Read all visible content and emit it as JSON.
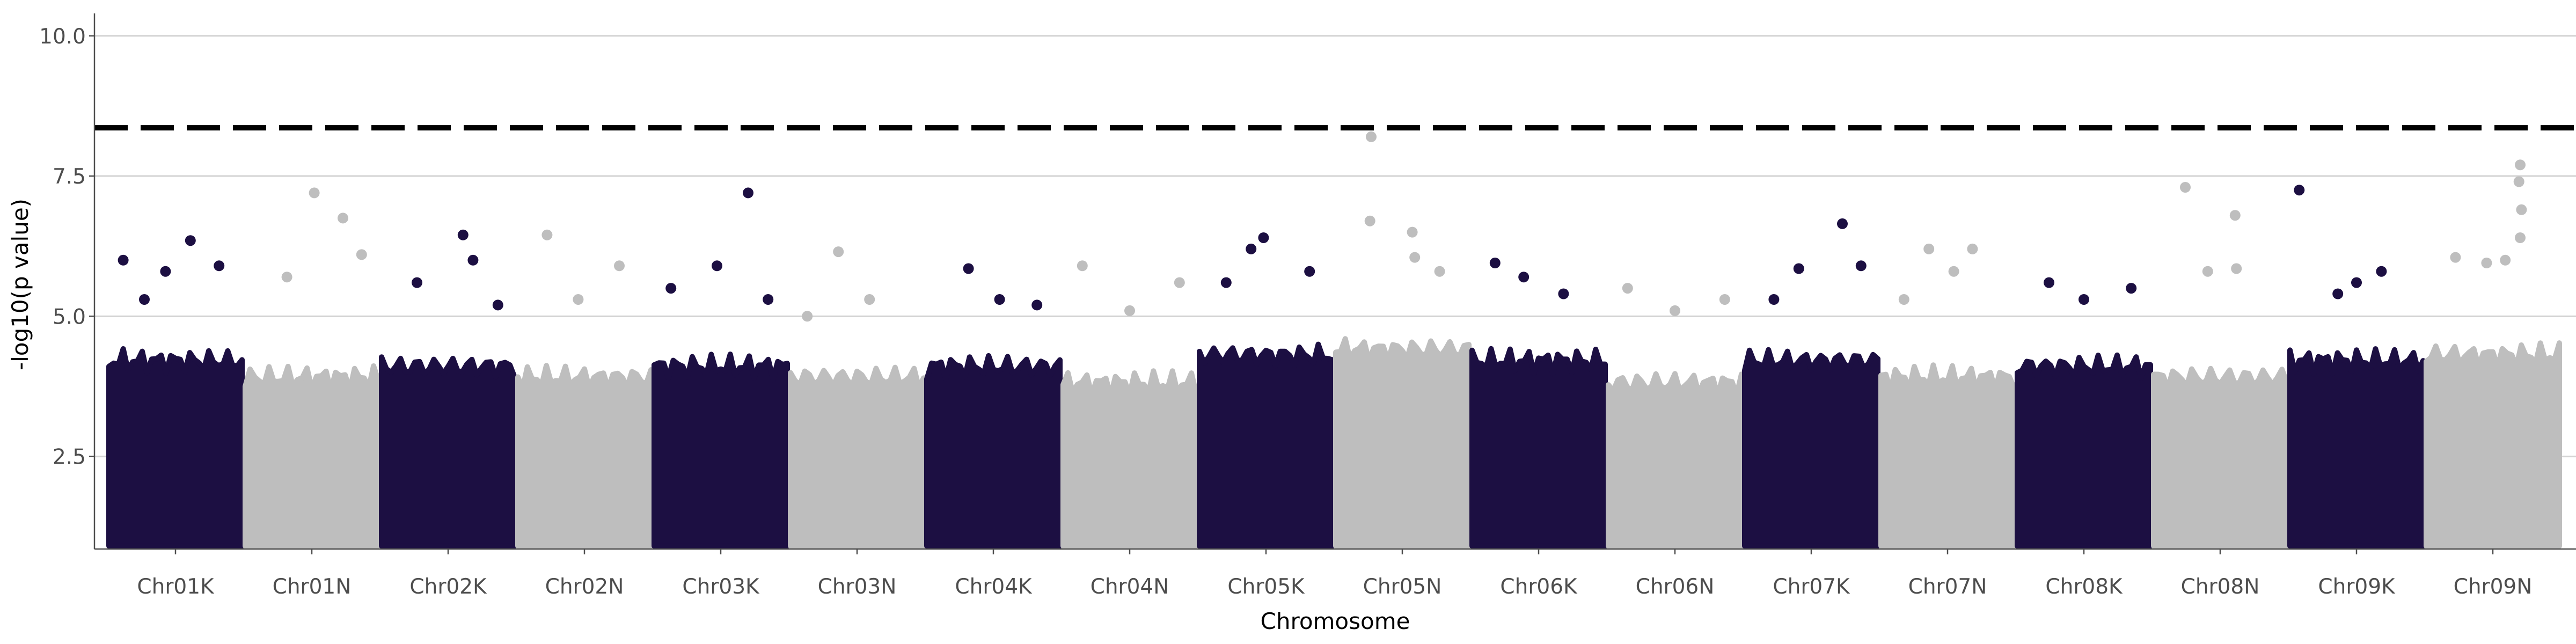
{
  "chart_data": {
    "type": "scatter",
    "subtype": "manhattan",
    "title": "",
    "xlabel": "Chromosome",
    "ylabel": "-log10(p value)",
    "ylim": [
      0.85,
      10.4
    ],
    "yticks": [
      2.5,
      5.0,
      7.5,
      10.0
    ],
    "ytick_labels": [
      "2.5",
      "5.0",
      "7.5",
      "10.0"
    ],
    "grid": "horizontal major gridlines only",
    "legend": "none",
    "significance_threshold": 8.36,
    "threshold_style": "black dashed line",
    "colors": {
      "K": "#1c0f42",
      "N": "#bebebe",
      "threshold": "#000000",
      "grid": "#d3d3d3"
    },
    "categories": [
      "Chr01K",
      "Chr01N",
      "Chr02K",
      "Chr02N",
      "Chr03K",
      "Chr03N",
      "Chr04K",
      "Chr04N",
      "Chr05K",
      "Chr05N",
      "Chr06K",
      "Chr06N",
      "Chr07K",
      "Chr07N",
      "Chr08K",
      "Chr08N",
      "Chr09K",
      "Chr09N"
    ],
    "dense_floor": 1.0,
    "dense_top": [
      4.2,
      3.9,
      4.1,
      3.9,
      4.1,
      3.9,
      4.1,
      3.8,
      4.3,
      4.4,
      4.2,
      3.8,
      4.2,
      3.9,
      4.1,
      3.9,
      4.2,
      4.3
    ],
    "notable_points": [
      {
        "chr": "Chr01K",
        "pos": 0.62,
        "y": 6.35
      },
      {
        "chr": "Chr01K",
        "pos": 0.08,
        "y": 6.0
      },
      {
        "chr": "Chr01K",
        "pos": 0.42,
        "y": 5.8
      },
      {
        "chr": "Chr01K",
        "pos": 0.85,
        "y": 5.9
      },
      {
        "chr": "Chr01K",
        "pos": 0.25,
        "y": 5.3
      },
      {
        "chr": "Chr01N",
        "pos": 0.52,
        "y": 7.2
      },
      {
        "chr": "Chr01N",
        "pos": 0.75,
        "y": 6.75
      },
      {
        "chr": "Chr01N",
        "pos": 0.9,
        "y": 6.1
      },
      {
        "chr": "Chr01N",
        "pos": 0.3,
        "y": 5.7
      },
      {
        "chr": "Chr02K",
        "pos": 0.62,
        "y": 6.45
      },
      {
        "chr": "Chr02K",
        "pos": 0.7,
        "y": 6.0
      },
      {
        "chr": "Chr02K",
        "pos": 0.25,
        "y": 5.6
      },
      {
        "chr": "Chr02K",
        "pos": 0.9,
        "y": 5.2
      },
      {
        "chr": "Chr02N",
        "pos": 0.2,
        "y": 6.45
      },
      {
        "chr": "Chr02N",
        "pos": 0.78,
        "y": 5.9
      },
      {
        "chr": "Chr02N",
        "pos": 0.45,
        "y": 5.3
      },
      {
        "chr": "Chr03K",
        "pos": 0.72,
        "y": 7.2
      },
      {
        "chr": "Chr03K",
        "pos": 0.47,
        "y": 5.9
      },
      {
        "chr": "Chr03K",
        "pos": 0.1,
        "y": 5.5
      },
      {
        "chr": "Chr03K",
        "pos": 0.88,
        "y": 5.3
      },
      {
        "chr": "Chr03N",
        "pos": 0.35,
        "y": 6.15
      },
      {
        "chr": "Chr03N",
        "pos": 0.6,
        "y": 5.3
      },
      {
        "chr": "Chr03N",
        "pos": 0.1,
        "y": 5.0
      },
      {
        "chr": "Chr04K",
        "pos": 0.3,
        "y": 5.85
      },
      {
        "chr": "Chr04K",
        "pos": 0.55,
        "y": 5.3
      },
      {
        "chr": "Chr04K",
        "pos": 0.85,
        "y": 5.2
      },
      {
        "chr": "Chr04N",
        "pos": 0.12,
        "y": 5.9
      },
      {
        "chr": "Chr04N",
        "pos": 0.9,
        "y": 5.6
      },
      {
        "chr": "Chr04N",
        "pos": 0.5,
        "y": 5.1
      },
      {
        "chr": "Chr05K",
        "pos": 0.48,
        "y": 6.4
      },
      {
        "chr": "Chr05K",
        "pos": 0.38,
        "y": 6.2
      },
      {
        "chr": "Chr05K",
        "pos": 0.18,
        "y": 5.6
      },
      {
        "chr": "Chr05K",
        "pos": 0.85,
        "y": 5.8
      },
      {
        "chr": "Chr05N",
        "pos": 0.25,
        "y": 8.2
      },
      {
        "chr": "Chr05N",
        "pos": 0.24,
        "y": 6.7
      },
      {
        "chr": "Chr05N",
        "pos": 0.58,
        "y": 6.5
      },
      {
        "chr": "Chr05N",
        "pos": 0.6,
        "y": 6.05
      },
      {
        "chr": "Chr05N",
        "pos": 0.8,
        "y": 5.8
      },
      {
        "chr": "Chr06K",
        "pos": 0.15,
        "y": 5.95
      },
      {
        "chr": "Chr06K",
        "pos": 0.38,
        "y": 5.7
      },
      {
        "chr": "Chr06K",
        "pos": 0.7,
        "y": 5.4
      },
      {
        "chr": "Chr06N",
        "pos": 0.12,
        "y": 5.5
      },
      {
        "chr": "Chr06N",
        "pos": 0.5,
        "y": 5.1
      },
      {
        "chr": "Chr06N",
        "pos": 0.9,
        "y": 5.3
      },
      {
        "chr": "Chr07K",
        "pos": 0.75,
        "y": 6.65
      },
      {
        "chr": "Chr07K",
        "pos": 0.4,
        "y": 5.85
      },
      {
        "chr": "Chr07K",
        "pos": 0.9,
        "y": 5.9
      },
      {
        "chr": "Chr07K",
        "pos": 0.2,
        "y": 5.3
      },
      {
        "chr": "Chr07N",
        "pos": 0.35,
        "y": 6.2
      },
      {
        "chr": "Chr07N",
        "pos": 0.7,
        "y": 6.2
      },
      {
        "chr": "Chr07N",
        "pos": 0.15,
        "y": 5.3
      },
      {
        "chr": "Chr07N",
        "pos": 0.55,
        "y": 5.8
      },
      {
        "chr": "Chr08K",
        "pos": 0.22,
        "y": 5.6
      },
      {
        "chr": "Chr08K",
        "pos": 0.5,
        "y": 5.3
      },
      {
        "chr": "Chr08K",
        "pos": 0.88,
        "y": 5.5
      },
      {
        "chr": "Chr08N",
        "pos": 0.22,
        "y": 7.3
      },
      {
        "chr": "Chr08N",
        "pos": 0.62,
        "y": 6.8
      },
      {
        "chr": "Chr08N",
        "pos": 0.63,
        "y": 5.85
      },
      {
        "chr": "Chr08N",
        "pos": 0.4,
        "y": 5.8
      },
      {
        "chr": "Chr09K",
        "pos": 0.04,
        "y": 7.25
      },
      {
        "chr": "Chr09K",
        "pos": 0.5,
        "y": 5.6
      },
      {
        "chr": "Chr09K",
        "pos": 0.7,
        "y": 5.8
      },
      {
        "chr": "Chr09K",
        "pos": 0.35,
        "y": 5.4
      },
      {
        "chr": "Chr09N",
        "pos": 0.72,
        "y": 7.7
      },
      {
        "chr": "Chr09N",
        "pos": 0.71,
        "y": 7.4
      },
      {
        "chr": "Chr09N",
        "pos": 0.73,
        "y": 6.9
      },
      {
        "chr": "Chr09N",
        "pos": 0.72,
        "y": 6.4
      },
      {
        "chr": "Chr09N",
        "pos": 0.2,
        "y": 6.05
      },
      {
        "chr": "Chr09N",
        "pos": 0.45,
        "y": 5.95
      },
      {
        "chr": "Chr09N",
        "pos": 0.6,
        "y": 6.0
      }
    ]
  }
}
